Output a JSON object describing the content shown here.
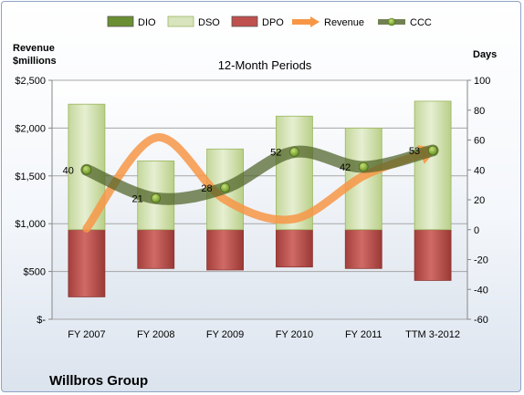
{
  "chart_data": {
    "type": "bar",
    "title": "12-Month Periods",
    "left_axis_label": "Revenue\n$millions",
    "right_axis_label": "Days",
    "footer": "Willbros Group",
    "categories": [
      "FY 2007",
      "FY 2008",
      "FY 2009",
      "FY 2010",
      "FY 2011",
      "TTM 3-2012"
    ],
    "left_axis": {
      "min": 0,
      "max": 2500,
      "ticks": [
        "$-",
        "$500",
        "$1,000",
        "$1,500",
        "$2,000",
        "$2,500"
      ],
      "tick_values": [
        0,
        500,
        1000,
        1500,
        2000,
        2500
      ]
    },
    "right_axis": {
      "min": -60,
      "max": 100,
      "ticks": [
        "-60",
        "-40",
        "-20",
        "0",
        "20",
        "40",
        "60",
        "80",
        "100"
      ],
      "tick_values": [
        -60,
        -40,
        -20,
        0,
        20,
        40,
        60,
        80,
        100
      ]
    },
    "gridlines": true,
    "legend_position": "top",
    "series": [
      {
        "name": "DIO",
        "kind": "bar",
        "axis": "right",
        "values": [
          0,
          0,
          0,
          0,
          0,
          0
        ],
        "color": "#4f7a28"
      },
      {
        "name": "DSO",
        "kind": "bar",
        "axis": "right",
        "values": [
          84,
          46,
          54,
          76,
          68,
          86
        ],
        "color": "#d7e4bd"
      },
      {
        "name": "DPO",
        "kind": "bar",
        "axis": "right",
        "values": [
          -45,
          -26,
          -27,
          -25,
          -26,
          -34
        ],
        "color": "#c0504d"
      },
      {
        "name": "Revenue",
        "kind": "line",
        "axis": "left",
        "values": [
          950,
          1900,
          1250,
          1050,
          1500,
          1770
        ],
        "color": "#f79646"
      },
      {
        "name": "CCC",
        "kind": "line",
        "axis": "right",
        "values": [
          40,
          21,
          28,
          52,
          42,
          53
        ],
        "color": "#4f6228",
        "labels": [
          "40",
          "21",
          "28",
          "52",
          "42",
          "53"
        ]
      }
    ]
  }
}
